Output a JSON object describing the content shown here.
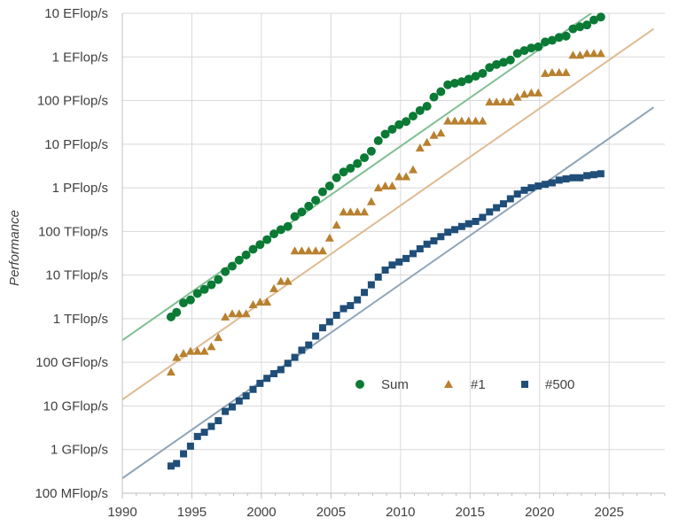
{
  "chart_data": {
    "type": "scatter",
    "title": "",
    "xlabel": "",
    "ylabel": "Performance",
    "x_scale": "linear",
    "y_scale": "log",
    "xlim": [
      1990,
      2029
    ],
    "ylim": [
      100000000.0,
      1e+19
    ],
    "grid": true,
    "legend_position": "lower-right",
    "x_ticks": [
      {
        "value": 1990,
        "label": "1990"
      },
      {
        "value": 1995,
        "label": "1995"
      },
      {
        "value": 2000,
        "label": "2000"
      },
      {
        "value": 2005,
        "label": "2005"
      },
      {
        "value": 2010,
        "label": "2010"
      },
      {
        "value": 2015,
        "label": "2015"
      },
      {
        "value": 2020,
        "label": "2020"
      },
      {
        "value": 2025,
        "label": "2025"
      }
    ],
    "y_ticks": [
      {
        "value": 100000000.0,
        "label": "100 MFlop/s"
      },
      {
        "value": 1000000000.0,
        "label": "1 GFlop/s"
      },
      {
        "value": 10000000000.0,
        "label": "10 GFlop/s"
      },
      {
        "value": 100000000000.0,
        "label": "100 GFlop/s"
      },
      {
        "value": 1000000000000.0,
        "label": "1 TFlop/s"
      },
      {
        "value": 10000000000000.0,
        "label": "10 TFlop/s"
      },
      {
        "value": 100000000000000.0,
        "label": "100 TFlop/s"
      },
      {
        "value": 1000000000000000.0,
        "label": "1 PFlop/s"
      },
      {
        "value": 1e+16,
        "label": "10 PFlop/s"
      },
      {
        "value": 1e+17,
        "label": "100 PFlop/s"
      },
      {
        "value": 1e+18,
        "label": "1 EFlop/s"
      },
      {
        "value": 1e+19,
        "label": "10 EFlop/s"
      }
    ],
    "series": [
      {
        "name": "Sum",
        "marker": "circle",
        "color": "#0a7a35",
        "points": [
          [
            1993.5,
            1100000000000.0
          ],
          [
            1993.9,
            1400000000000.0
          ],
          [
            1994.4,
            2300000000000.0
          ],
          [
            1994.9,
            2700000000000.0
          ],
          [
            1995.4,
            3800000000000.0
          ],
          [
            1995.9,
            4700000000000.0
          ],
          [
            1996.4,
            6000000000000.0
          ],
          [
            1996.9,
            7900000000000.0
          ],
          [
            1997.4,
            12000000000000.0
          ],
          [
            1997.9,
            16000000000000.0
          ],
          [
            1998.4,
            22000000000000.0
          ],
          [
            1998.9,
            29000000000000.0
          ],
          [
            1999.4,
            39000000000000.0
          ],
          [
            1999.9,
            50000000000000.0
          ],
          [
            2000.4,
            65000000000000.0
          ],
          [
            2000.9,
            88000000000000.0
          ],
          [
            2001.4,
            110000000000000.0
          ],
          [
            2001.9,
            130000000000000.0
          ],
          [
            2002.4,
            220000000000000.0
          ],
          [
            2002.9,
            280000000000000.0
          ],
          [
            2003.4,
            380000000000000.0
          ],
          [
            2003.9,
            520000000000000.0
          ],
          [
            2004.4,
            810000000000000.0
          ],
          [
            2004.9,
            1100000000000000.0
          ],
          [
            2005.4,
            1700000000000000.0
          ],
          [
            2005.9,
            2300000000000000.0
          ],
          [
            2006.4,
            2800000000000000.0
          ],
          [
            2006.9,
            3600000000000000.0
          ],
          [
            2007.4,
            4900000000000000.0
          ],
          [
            2007.9,
            6900000000000000.0
          ],
          [
            2008.4,
            1.2e+16
          ],
          [
            2008.9,
            1.7e+16
          ],
          [
            2009.4,
            2.2e+16
          ],
          [
            2009.9,
            2.8e+16
          ],
          [
            2010.4,
            3.3e+16
          ],
          [
            2010.9,
            4.4e+16
          ],
          [
            2011.4,
            5.9e+16
          ],
          [
            2011.9,
            7.4e+16
          ],
          [
            2012.4,
            1.2e+17
          ],
          [
            2012.9,
            1.6e+17
          ],
          [
            2013.4,
            2.3e+17
          ],
          [
            2013.9,
            2.5e+17
          ],
          [
            2014.4,
            2.7e+17
          ],
          [
            2014.9,
            3.1e+17
          ],
          [
            2015.4,
            3.6e+17
          ],
          [
            2015.9,
            4.2e+17
          ],
          [
            2016.4,
            5.7e+17
          ],
          [
            2016.9,
            6.7e+17
          ],
          [
            2017.4,
            7.5e+17
          ],
          [
            2017.9,
            8.5e+17
          ],
          [
            2018.4,
            1.2e+18
          ],
          [
            2018.9,
            1.4e+18
          ],
          [
            2019.4,
            1.6e+18
          ],
          [
            2019.9,
            1.7e+18
          ],
          [
            2020.4,
            2.2e+18
          ],
          [
            2020.9,
            2.4e+18
          ],
          [
            2021.4,
            2.8e+18
          ],
          [
            2021.9,
            3e+18
          ],
          [
            2022.4,
            4.4e+18
          ],
          [
            2022.9,
            4.9e+18
          ],
          [
            2023.4,
            5.4e+18
          ],
          [
            2023.9,
            7e+18
          ],
          [
            2024.4,
            8.2e+18
          ]
        ]
      },
      {
        "name": "#1",
        "marker": "triangle",
        "color": "#b8802f",
        "points": [
          [
            1993.5,
            60000000000.0
          ],
          [
            1993.9,
            130000000000.0
          ],
          [
            1994.4,
            160000000000.0
          ],
          [
            1994.9,
            180000000000.0
          ],
          [
            1995.4,
            180000000000.0
          ],
          [
            1995.9,
            180000000000.0
          ],
          [
            1996.4,
            230000000000.0
          ],
          [
            1996.9,
            370000000000.0
          ],
          [
            1997.4,
            1100000000000.0
          ],
          [
            1997.9,
            1300000000000.0
          ],
          [
            1998.4,
            1300000000000.0
          ],
          [
            1998.9,
            1300000000000.0
          ],
          [
            1999.4,
            2100000000000.0
          ],
          [
            1999.9,
            2400000000000.0
          ],
          [
            2000.4,
            2400000000000.0
          ],
          [
            2000.9,
            4900000000000.0
          ],
          [
            2001.4,
            7200000000000.0
          ],
          [
            2001.9,
            7200000000000.0
          ],
          [
            2002.4,
            36000000000000.0
          ],
          [
            2002.9,
            36000000000000.0
          ],
          [
            2003.4,
            36000000000000.0
          ],
          [
            2003.9,
            36000000000000.0
          ],
          [
            2004.4,
            36000000000000.0
          ],
          [
            2004.9,
            71000000000000.0
          ],
          [
            2005.4,
            140000000000000.0
          ],
          [
            2005.9,
            280000000000000.0
          ],
          [
            2006.4,
            280000000000000.0
          ],
          [
            2006.9,
            280000000000000.0
          ],
          [
            2007.4,
            280000000000000.0
          ],
          [
            2007.9,
            480000000000000.0
          ],
          [
            2008.4,
            1000000000000000.0
          ],
          [
            2008.9,
            1100000000000000.0
          ],
          [
            2009.4,
            1100000000000000.0
          ],
          [
            2009.9,
            1800000000000000.0
          ],
          [
            2010.4,
            1800000000000000.0
          ],
          [
            2010.9,
            2600000000000000.0
          ],
          [
            2011.4,
            8200000000000000.0
          ],
          [
            2011.9,
            1.1e+16
          ],
          [
            2012.4,
            1.6e+16
          ],
          [
            2012.9,
            1.8e+16
          ],
          [
            2013.4,
            3.4e+16
          ],
          [
            2013.9,
            3.4e+16
          ],
          [
            2014.4,
            3.4e+16
          ],
          [
            2014.9,
            3.4e+16
          ],
          [
            2015.4,
            3.4e+16
          ],
          [
            2015.9,
            3.4e+16
          ],
          [
            2016.4,
            9.3e+16
          ],
          [
            2016.9,
            9.3e+16
          ],
          [
            2017.4,
            9.3e+16
          ],
          [
            2017.9,
            9.3e+16
          ],
          [
            2018.4,
            1.2e+17
          ],
          [
            2018.9,
            1.4e+17
          ],
          [
            2019.4,
            1.5e+17
          ],
          [
            2019.9,
            1.5e+17
          ],
          [
            2020.4,
            4.2e+17
          ],
          [
            2020.9,
            4.4e+17
          ],
          [
            2021.4,
            4.4e+17
          ],
          [
            2021.9,
            4.4e+17
          ],
          [
            2022.4,
            1.1e+18
          ],
          [
            2022.9,
            1.1e+18
          ],
          [
            2023.4,
            1.2e+18
          ],
          [
            2023.9,
            1.2e+18
          ],
          [
            2024.4,
            1.2e+18
          ]
        ]
      },
      {
        "name": "#500",
        "marker": "square",
        "color": "#1f4e79",
        "points": [
          [
            1993.5,
            420000000.0
          ],
          [
            1993.9,
            480000000.0
          ],
          [
            1994.4,
            800000000.0
          ],
          [
            1994.9,
            1200000000.0
          ],
          [
            1995.4,
            2000000000.0
          ],
          [
            1995.9,
            2500000000.0
          ],
          [
            1996.4,
            3400000000.0
          ],
          [
            1996.9,
            4600000000.0
          ],
          [
            1997.4,
            7500000000.0
          ],
          [
            1997.9,
            9500000000.0
          ],
          [
            1998.4,
            13000000000.0
          ],
          [
            1998.9,
            17000000000.0
          ],
          [
            1999.4,
            24000000000.0
          ],
          [
            1999.9,
            33000000000.0
          ],
          [
            2000.4,
            43000000000.0
          ],
          [
            2000.9,
            55000000000.0
          ],
          [
            2001.4,
            68000000000.0
          ],
          [
            2001.9,
            95000000000.0
          ],
          [
            2002.4,
            130000000000.0
          ],
          [
            2002.9,
            190000000000.0
          ],
          [
            2003.4,
            250000000000.0
          ],
          [
            2003.9,
            400000000000.0
          ],
          [
            2004.4,
            620000000000.0
          ],
          [
            2004.9,
            850000000000.0
          ],
          [
            2005.4,
            1200000000000.0
          ],
          [
            2005.9,
            1700000000000.0
          ],
          [
            2006.4,
            2000000000000.0
          ],
          [
            2006.9,
            2700000000000.0
          ],
          [
            2007.4,
            4000000000000.0
          ],
          [
            2007.9,
            6000000000000.0
          ],
          [
            2008.4,
            9000000000000.0
          ],
          [
            2008.9,
            13000000000000.0
          ],
          [
            2009.4,
            17000000000000.0
          ],
          [
            2009.9,
            20000000000000.0
          ],
          [
            2010.4,
            24000000000000.0
          ],
          [
            2010.9,
            31000000000000.0
          ],
          [
            2011.4,
            40000000000000.0
          ],
          [
            2011.9,
            51000000000000.0
          ],
          [
            2012.4,
            61000000000000.0
          ],
          [
            2012.9,
            76000000000000.0
          ],
          [
            2013.4,
            96000000000000.0
          ],
          [
            2013.9,
            110000000000000.0
          ],
          [
            2014.4,
            130000000000000.0
          ],
          [
            2014.9,
            150000000000000.0
          ],
          [
            2015.4,
            170000000000000.0
          ],
          [
            2015.9,
            210000000000000.0
          ],
          [
            2016.4,
            280000000000000.0
          ],
          [
            2016.9,
            350000000000000.0
          ],
          [
            2017.4,
            430000000000000.0
          ],
          [
            2017.9,
            560000000000000.0
          ],
          [
            2018.4,
            720000000000000.0
          ],
          [
            2018.9,
            880000000000000.0
          ],
          [
            2019.4,
            1000000000000000.0
          ],
          [
            2019.9,
            1100000000000000.0
          ],
          [
            2020.4,
            1200000000000000.0
          ],
          [
            2020.9,
            1300000000000000.0
          ],
          [
            2021.4,
            1500000000000000.0
          ],
          [
            2021.9,
            1600000000000000.0
          ],
          [
            2022.4,
            1700000000000000.0
          ],
          [
            2022.9,
            1700000000000000.0
          ],
          [
            2023.4,
            1900000000000000.0
          ],
          [
            2023.9,
            2000000000000000.0
          ],
          [
            2024.4,
            2100000000000000.0
          ]
        ]
      }
    ],
    "trend_lines": [
      {
        "series": "Sum",
        "color": "#7fbf92",
        "from": [
          1990,
          320000000000.0
        ],
        "to": [
          2028.2,
          1e+20
        ]
      },
      {
        "series": "#1",
        "color": "#dfbb92",
        "from": [
          1990,
          14000000000.0
        ],
        "to": [
          2028.2,
          4.4e+18
        ]
      },
      {
        "series": "#500",
        "color": "#8fa5b8",
        "from": [
          1990,
          220000000.0
        ],
        "to": [
          2028.2,
          7e+16
        ]
      }
    ]
  }
}
